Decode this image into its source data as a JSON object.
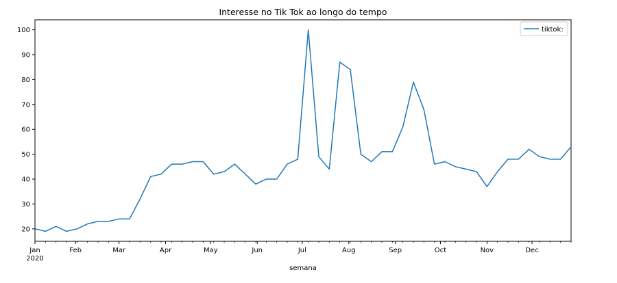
{
  "chart_data": {
    "type": "line",
    "title": "Interesse no Tik Tok ao longo do tempo",
    "xlabel": "semana",
    "ylabel": "",
    "year_label": "2020",
    "ylim": [
      15,
      104
    ],
    "xlim": [
      "2020-01-05",
      "2020-12-27"
    ],
    "grid": false,
    "legend_position": "top-right",
    "x_ticks": [
      {
        "date": "2020-01-05",
        "label": "Jan"
      },
      {
        "date": "2020-02-01",
        "label": "Feb"
      },
      {
        "date": "2020-03-01",
        "label": "Mar"
      },
      {
        "date": "2020-04-01",
        "label": "Apr"
      },
      {
        "date": "2020-05-01",
        "label": "May"
      },
      {
        "date": "2020-06-01",
        "label": "Jun"
      },
      {
        "date": "2020-07-01",
        "label": "Jul"
      },
      {
        "date": "2020-08-01",
        "label": "Aug"
      },
      {
        "date": "2020-09-01",
        "label": "Sep"
      },
      {
        "date": "2020-10-01",
        "label": "Oct"
      },
      {
        "date": "2020-11-01",
        "label": "Nov"
      },
      {
        "date": "2020-12-01",
        "label": "Dec"
      }
    ],
    "y_ticks": [
      20,
      30,
      40,
      50,
      60,
      70,
      80,
      90,
      100
    ],
    "series": [
      {
        "name": "tiktok:",
        "color": "#1f77b4",
        "x": [
          "2020-01-05",
          "2020-01-12",
          "2020-01-19",
          "2020-01-26",
          "2020-02-02",
          "2020-02-09",
          "2020-02-16",
          "2020-02-23",
          "2020-03-01",
          "2020-03-08",
          "2020-03-15",
          "2020-03-22",
          "2020-03-29",
          "2020-04-05",
          "2020-04-12",
          "2020-04-19",
          "2020-04-26",
          "2020-05-03",
          "2020-05-10",
          "2020-05-17",
          "2020-05-24",
          "2020-05-31",
          "2020-06-07",
          "2020-06-14",
          "2020-06-21",
          "2020-06-28",
          "2020-07-05",
          "2020-07-12",
          "2020-07-19",
          "2020-07-26",
          "2020-08-02",
          "2020-08-09",
          "2020-08-16",
          "2020-08-23",
          "2020-08-30",
          "2020-09-06",
          "2020-09-13",
          "2020-09-20",
          "2020-09-27",
          "2020-10-04",
          "2020-10-11",
          "2020-10-18",
          "2020-10-25",
          "2020-11-01",
          "2020-11-08",
          "2020-11-15",
          "2020-11-22",
          "2020-11-29",
          "2020-12-06",
          "2020-12-13",
          "2020-12-20",
          "2020-12-27"
        ],
        "values": [
          20,
          19,
          21,
          19,
          20,
          22,
          23,
          23,
          24,
          24,
          32,
          41,
          42,
          46,
          46,
          47,
          47,
          42,
          43,
          46,
          42,
          38,
          40,
          40,
          46,
          48,
          100,
          49,
          44,
          87,
          84,
          50,
          47,
          51,
          51,
          61,
          79,
          68,
          46,
          47,
          45,
          44,
          43,
          37,
          43,
          48,
          48,
          52,
          49,
          48,
          48,
          53
        ]
      }
    ]
  }
}
